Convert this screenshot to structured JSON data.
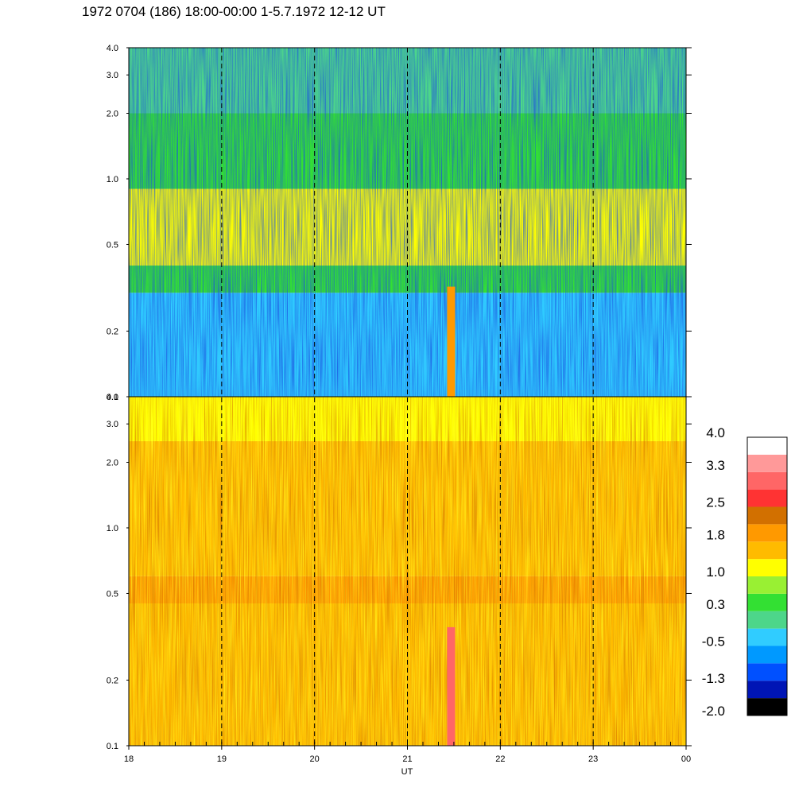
{
  "title": "1972 0704 (186) 18:00-00:00 1-5.7.1972  12-12 UT",
  "chart_data": {
    "type": "heatmap",
    "title": "1972 0704 (186) 18:00-00:00 1-5.7.1972  12-12 UT",
    "xlabel": "UT",
    "x_tick_labels": [
      "18",
      "19",
      "20",
      "21",
      "22",
      "23",
      "00"
    ],
    "x_range": [
      18,
      24
    ],
    "y_scale": "log",
    "y_range": [
      0.1,
      4.0
    ],
    "y_tick_labels": [
      "0.1",
      "0.2",
      "0.5",
      "1.0",
      "2.0",
      "3.0",
      "4.0"
    ],
    "y_tick_values": [
      0.1,
      0.2,
      0.5,
      1.0,
      2.0,
      3.0,
      4.0
    ],
    "vertical_dashed_lines_at": [
      19,
      20,
      21,
      22,
      23
    ],
    "panels": [
      {
        "name": "upper",
        "dominant_levels_by_frequency": [
          {
            "y_range": [
              0.1,
              0.3
            ],
            "level": -0.5
          },
          {
            "y_range": [
              0.3,
              0.4
            ],
            "level": 0.3
          },
          {
            "y_range": [
              0.4,
              0.9
            ],
            "level": 1.0
          },
          {
            "y_range": [
              0.9,
              2.0
            ],
            "level": 0.6
          },
          {
            "y_range": [
              2.0,
              4.0
            ],
            "level": -0.1
          }
        ],
        "features": [
          {
            "x": 21.47,
            "y_range": [
              0.1,
              0.32
            ],
            "level": 1.8
          }
        ]
      },
      {
        "name": "lower",
        "dominant_levels_by_frequency": [
          {
            "y_range": [
              0.1,
              0.45
            ],
            "level": 1.5
          },
          {
            "y_range": [
              0.45,
              0.6
            ],
            "level": 1.9
          },
          {
            "y_range": [
              0.6,
              2.5
            ],
            "level": 1.6
          },
          {
            "y_range": [
              2.5,
              4.0
            ],
            "level": 1.2
          }
        ],
        "features": [
          {
            "x": 21.47,
            "y_range": [
              0.1,
              0.35
            ],
            "level": 2.9
          }
        ]
      }
    ],
    "colorbar": {
      "labels": [
        "4.0",
        "3.3",
        "2.5",
        "1.8",
        "1.0",
        "0.3",
        "-0.5",
        "-1.3",
        "-2.0"
      ],
      "min": -2.0,
      "max": 4.0,
      "colors": [
        "#000000",
        "#0015b5",
        "#0050ff",
        "#0099ff",
        "#30ccff",
        "#4dd68a",
        "#33e033",
        "#99f033",
        "#ffff00",
        "#ffbb00",
        "#ff9900",
        "#d27000",
        "#ff3333",
        "#ff6666",
        "#ff9999",
        "#ffffff"
      ]
    }
  }
}
